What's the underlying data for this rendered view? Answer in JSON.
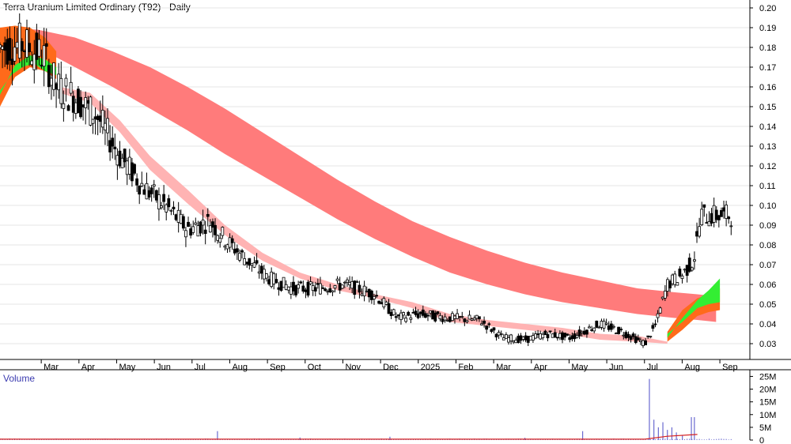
{
  "chart_data": {
    "type": "candlestick",
    "title": "Terra Uranium Limited Ordinary (T92) - Daily",
    "price_axis": {
      "ticks": [
        "0.20",
        "0.19",
        "0.18",
        "0.17",
        "0.16",
        "0.15",
        "0.14",
        "0.13",
        "0.12",
        "0.11",
        "0.10",
        "0.09",
        "0.08",
        "0.07",
        "0.06",
        "0.05",
        "0.04",
        "0.03"
      ],
      "range": [
        0.022,
        0.204
      ]
    },
    "volume_axis": {
      "label": "Volume",
      "ticks": [
        "25M",
        "20M",
        "15M",
        "10M",
        "5M",
        "0"
      ],
      "range": [
        0,
        27
      ]
    },
    "x_labels": [
      "Mar",
      "Apr",
      "May",
      "Jun",
      "Jul",
      "Aug",
      "Sep",
      "Oct",
      "Nov",
      "Dec",
      "2025",
      "Feb",
      "Mar",
      "Apr",
      "May",
      "Jun",
      "Jul",
      "Aug",
      "Sep"
    ],
    "colors": {
      "long_band": "#ff7b7b",
      "short_band_down": "#ffb3b3",
      "band_orange": "#ff6a1a",
      "band_green": "#33ee33",
      "volume_bar": "#6a6ad0",
      "volume_ma": "#d62020",
      "grid": "#e6e6e6"
    },
    "long_band_top": [
      [
        0.0,
        0.19
      ],
      [
        0.05,
        0.189
      ],
      [
        0.1,
        0.185
      ],
      [
        0.15,
        0.178
      ],
      [
        0.2,
        0.17
      ],
      [
        0.25,
        0.16
      ],
      [
        0.3,
        0.149
      ],
      [
        0.35,
        0.137
      ],
      [
        0.4,
        0.125
      ],
      [
        0.45,
        0.113
      ],
      [
        0.5,
        0.102
      ],
      [
        0.55,
        0.092
      ],
      [
        0.6,
        0.084
      ],
      [
        0.65,
        0.077
      ],
      [
        0.7,
        0.071
      ],
      [
        0.75,
        0.066
      ],
      [
        0.8,
        0.062
      ],
      [
        0.85,
        0.058
      ],
      [
        0.9,
        0.056
      ],
      [
        0.93,
        0.055
      ],
      [
        0.955,
        0.054
      ]
    ],
    "long_band_bottom": [
      [
        0.0,
        0.186
      ],
      [
        0.05,
        0.18
      ],
      [
        0.1,
        0.17
      ],
      [
        0.15,
        0.16
      ],
      [
        0.2,
        0.149
      ],
      [
        0.25,
        0.138
      ],
      [
        0.3,
        0.126
      ],
      [
        0.35,
        0.115
      ],
      [
        0.4,
        0.104
      ],
      [
        0.45,
        0.093
      ],
      [
        0.5,
        0.083
      ],
      [
        0.55,
        0.074
      ],
      [
        0.6,
        0.066
      ],
      [
        0.65,
        0.06
      ],
      [
        0.7,
        0.055
      ],
      [
        0.75,
        0.051
      ],
      [
        0.8,
        0.048
      ],
      [
        0.85,
        0.045
      ],
      [
        0.9,
        0.043
      ],
      [
        0.93,
        0.042
      ],
      [
        0.955,
        0.041
      ]
    ],
    "short_band_top": [
      [
        0.08,
        0.16
      ],
      [
        0.12,
        0.157
      ],
      [
        0.16,
        0.143
      ],
      [
        0.2,
        0.125
      ],
      [
        0.25,
        0.108
      ],
      [
        0.3,
        0.09
      ],
      [
        0.35,
        0.076
      ],
      [
        0.4,
        0.066
      ],
      [
        0.45,
        0.06
      ],
      [
        0.5,
        0.055
      ],
      [
        0.55,
        0.051
      ],
      [
        0.6,
        0.045
      ],
      [
        0.65,
        0.042
      ],
      [
        0.7,
        0.04
      ],
      [
        0.75,
        0.038
      ],
      [
        0.8,
        0.035
      ],
      [
        0.85,
        0.034
      ],
      [
        0.89,
        0.031
      ]
    ],
    "short_band_bottom": [
      [
        0.08,
        0.157
      ],
      [
        0.12,
        0.152
      ],
      [
        0.16,
        0.137
      ],
      [
        0.2,
        0.118
      ],
      [
        0.25,
        0.101
      ],
      [
        0.3,
        0.085
      ],
      [
        0.35,
        0.072
      ],
      [
        0.4,
        0.063
      ],
      [
        0.45,
        0.057
      ],
      [
        0.5,
        0.053
      ],
      [
        0.55,
        0.048
      ],
      [
        0.6,
        0.041
      ],
      [
        0.65,
        0.039
      ],
      [
        0.7,
        0.037
      ],
      [
        0.75,
        0.035
      ],
      [
        0.8,
        0.032
      ],
      [
        0.85,
        0.031
      ],
      [
        0.89,
        0.03
      ]
    ],
    "early_band_top": [
      [
        0.0,
        0.19
      ],
      [
        0.02,
        0.191
      ],
      [
        0.04,
        0.19
      ],
      [
        0.06,
        0.185
      ],
      [
        0.075,
        0.178
      ]
    ],
    "early_band_bottom": [
      [
        0.0,
        0.15
      ],
      [
        0.02,
        0.165
      ],
      [
        0.04,
        0.17
      ],
      [
        0.06,
        0.168
      ],
      [
        0.075,
        0.164
      ]
    ],
    "early_band_green": [
      [
        0.0,
        0.158
      ],
      [
        0.015,
        0.166
      ],
      [
        0.03,
        0.17
      ],
      [
        0.045,
        0.172
      ],
      [
        0.06,
        0.168
      ],
      [
        0.075,
        0.166
      ]
    ],
    "late_band_top": [
      [
        0.89,
        0.036
      ],
      [
        0.91,
        0.047
      ],
      [
        0.93,
        0.053
      ],
      [
        0.945,
        0.055
      ],
      [
        0.96,
        0.058
      ]
    ],
    "late_band_bottom": [
      [
        0.89,
        0.031
      ],
      [
        0.91,
        0.037
      ],
      [
        0.93,
        0.044
      ],
      [
        0.945,
        0.046
      ],
      [
        0.96,
        0.047
      ]
    ],
    "late_band_green": [
      [
        0.89,
        0.033
      ],
      [
        0.91,
        0.043
      ],
      [
        0.93,
        0.052
      ],
      [
        0.945,
        0.057
      ],
      [
        0.96,
        0.063
      ]
    ],
    "volume_spikes": [
      [
        0.29,
        3.5
      ],
      [
        0.4,
        1.0
      ],
      [
        0.52,
        1.3
      ],
      [
        0.7,
        0.9
      ],
      [
        0.777,
        3.5
      ],
      [
        0.866,
        24
      ],
      [
        0.872,
        8
      ],
      [
        0.878,
        5
      ],
      [
        0.884,
        7
      ],
      [
        0.89,
        4
      ],
      [
        0.896,
        5
      ],
      [
        0.902,
        3
      ],
      [
        0.91,
        2
      ],
      [
        0.922,
        9
      ],
      [
        0.926,
        9
      ]
    ]
  }
}
